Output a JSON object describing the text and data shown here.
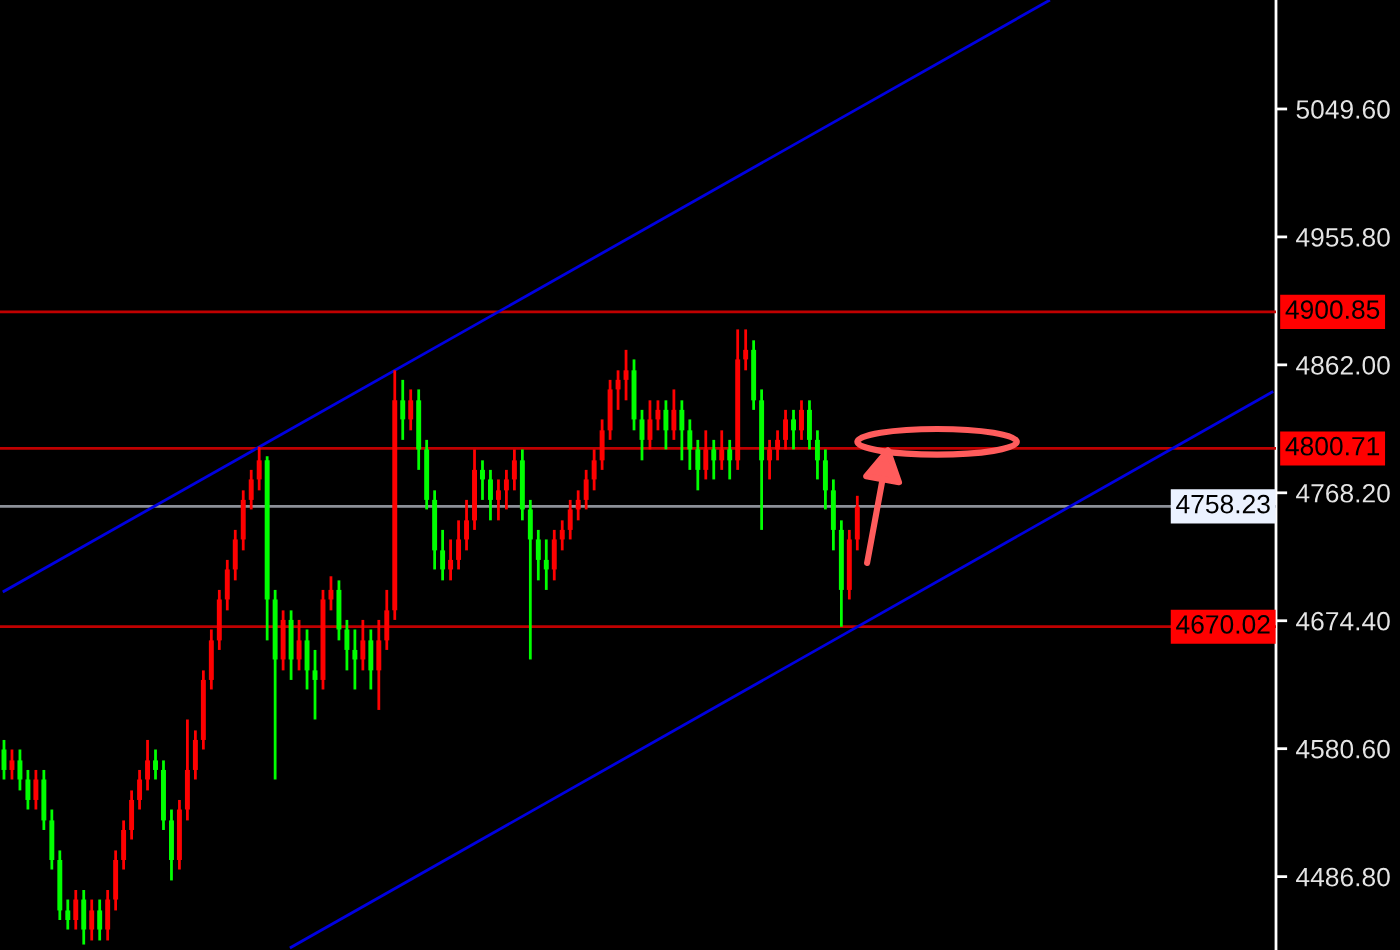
{
  "chart_data": {
    "type": "candlestick",
    "categories": [
      null,
      null,
      null,
      null,
      null,
      null,
      null,
      null,
      null,
      null,
      null,
      null,
      null,
      null,
      null,
      null,
      null,
      null,
      null,
      null,
      null,
      null,
      null,
      null,
      null,
      null,
      null,
      null,
      null,
      null,
      null,
      null,
      null,
      null,
      null,
      null,
      null,
      null,
      null,
      null,
      null,
      null,
      null,
      null,
      null,
      null,
      null,
      null,
      null,
      null,
      null,
      null,
      null,
      null,
      null,
      null,
      null,
      null,
      null,
      null,
      null,
      null,
      null,
      null,
      null,
      null,
      null,
      null,
      null,
      null,
      null,
      null,
      null,
      null,
      null,
      null,
      null,
      null,
      null,
      null,
      null,
      null,
      null,
      null,
      null,
      null,
      null,
      null,
      null,
      null,
      null,
      null,
      null,
      null,
      null,
      null,
      null,
      null,
      null,
      null,
      null,
      null,
      null,
      null,
      null,
      null,
      null,
      null,
      null,
      null,
      null,
      null,
      null,
      null,
      null,
      null,
      null,
      null,
      null,
      null,
      null,
      null,
      null,
      null,
      null,
      null,
      null,
      null,
      null,
      null,
      null,
      null,
      null,
      null,
      null,
      null,
      null,
      null,
      null,
      null,
      null,
      null,
      null,
      null,
      null,
      null,
      null,
      null,
      null,
      null,
      null,
      null,
      null,
      null,
      null,
      null,
      null,
      null,
      null,
      null
    ],
    "ohlc": [
      [
        4580,
        4587,
        4558,
        4565
      ],
      [
        4565,
        4580,
        4558,
        4572
      ],
      [
        4572,
        4580,
        4550,
        4558
      ],
      [
        4558,
        4565,
        4536,
        4543
      ],
      [
        4543,
        4565,
        4536,
        4558
      ],
      [
        4558,
        4565,
        4521,
        4528
      ],
      [
        4528,
        4536,
        4492,
        4499
      ],
      [
        4499,
        4506,
        4455,
        4462
      ],
      [
        4462,
        4470,
        4448,
        4455
      ],
      [
        4455,
        4477,
        4448,
        4470
      ],
      [
        4470,
        4477,
        4437,
        4448
      ],
      [
        4448,
        4470,
        4440,
        4462
      ],
      [
        4462,
        4470,
        4440,
        4448
      ],
      [
        4448,
        4477,
        4440,
        4470
      ],
      [
        4470,
        4506,
        4462,
        4499
      ],
      [
        4499,
        4528,
        4492,
        4521
      ],
      [
        4521,
        4550,
        4514,
        4543
      ],
      [
        4543,
        4565,
        4536,
        4558
      ],
      [
        4558,
        4587,
        4550,
        4572
      ],
      [
        4572,
        4580,
        4558,
        4565
      ],
      [
        4565,
        4572,
        4521,
        4528
      ],
      [
        4528,
        4536,
        4484,
        4499
      ],
      [
        4499,
        4543,
        4492,
        4536
      ],
      [
        4536,
        4602,
        4528,
        4565
      ],
      [
        4565,
        4594,
        4558,
        4587
      ],
      [
        4587,
        4638,
        4580,
        4631
      ],
      [
        4631,
        4668,
        4624,
        4660
      ],
      [
        4660,
        4697,
        4653,
        4690
      ],
      [
        4690,
        4719,
        4682,
        4712
      ],
      [
        4712,
        4741,
        4704,
        4734
      ],
      [
        4734,
        4770,
        4726,
        4763
      ],
      [
        4763,
        4785,
        4756,
        4778
      ],
      [
        4778,
        4802,
        4770,
        4792
      ],
      [
        4792,
        4795,
        4660,
        4690
      ],
      [
        4690,
        4697,
        4558,
        4646
      ],
      [
        4646,
        4682,
        4638,
        4675
      ],
      [
        4675,
        4682,
        4631,
        4646
      ],
      [
        4646,
        4675,
        4638,
        4660
      ],
      [
        4660,
        4668,
        4624,
        4638
      ],
      [
        4638,
        4653,
        4602,
        4631
      ],
      [
        4631,
        4697,
        4624,
        4690
      ],
      [
        4690,
        4707,
        4682,
        4697
      ],
      [
        4697,
        4704,
        4660,
        4668
      ],
      [
        4668,
        4675,
        4638,
        4653
      ],
      [
        4653,
        4668,
        4624,
        4646
      ],
      [
        4646,
        4675,
        4638,
        4660
      ],
      [
        4660,
        4668,
        4624,
        4638
      ],
      [
        4638,
        4675,
        4609,
        4660
      ],
      [
        4660,
        4697,
        4653,
        4682
      ],
      [
        4682,
        4858,
        4675,
        4836
      ],
      [
        4836,
        4851,
        4807,
        4822
      ],
      [
        4822,
        4844,
        4814,
        4836
      ],
      [
        4836,
        4844,
        4785,
        4800
      ],
      [
        4800,
        4807,
        4756,
        4763
      ],
      [
        4763,
        4770,
        4712,
        4726
      ],
      [
        4726,
        4741,
        4704,
        4712
      ],
      [
        4712,
        4734,
        4704,
        4719
      ],
      [
        4719,
        4748,
        4712,
        4734
      ],
      [
        4734,
        4763,
        4726,
        4748
      ],
      [
        4748,
        4800,
        4741,
        4785
      ],
      [
        4785,
        4792,
        4763,
        4778
      ],
      [
        4778,
        4785,
        4748,
        4763
      ],
      [
        4763,
        4778,
        4748,
        4770
      ],
      [
        4770,
        4785,
        4756,
        4778
      ],
      [
        4778,
        4800,
        4770,
        4792
      ],
      [
        4792,
        4800,
        4748,
        4756
      ],
      [
        4756,
        4763,
        4646,
        4734
      ],
      [
        4734,
        4741,
        4704,
        4719
      ],
      [
        4719,
        4734,
        4697,
        4712
      ],
      [
        4712,
        4741,
        4704,
        4734
      ],
      [
        4734,
        4748,
        4726,
        4741
      ],
      [
        4741,
        4763,
        4734,
        4756
      ],
      [
        4756,
        4770,
        4748,
        4763
      ],
      [
        4763,
        4785,
        4756,
        4778
      ],
      [
        4778,
        4800,
        4770,
        4792
      ],
      [
        4792,
        4822,
        4785,
        4814
      ],
      [
        4814,
        4851,
        4807,
        4844
      ],
      [
        4844,
        4858,
        4829,
        4851
      ],
      [
        4851,
        4873,
        4836,
        4858
      ],
      [
        4858,
        4866,
        4814,
        4822
      ],
      [
        4822,
        4829,
        4792,
        4807
      ],
      [
        4807,
        4836,
        4800,
        4822
      ],
      [
        4822,
        4836,
        4814,
        4829
      ],
      [
        4829,
        4836,
        4800,
        4814
      ],
      [
        4814,
        4844,
        4807,
        4829
      ],
      [
        4829,
        4836,
        4792,
        4814
      ],
      [
        4814,
        4822,
        4785,
        4800
      ],
      [
        4800,
        4807,
        4770,
        4785
      ],
      [
        4785,
        4814,
        4778,
        4800
      ],
      [
        4800,
        4807,
        4778,
        4792
      ],
      [
        4792,
        4814,
        4785,
        4800
      ],
      [
        4800,
        4807,
        4778,
        4792
      ],
      [
        4792,
        4888,
        4785,
        4866
      ],
      [
        4866,
        4888,
        4858,
        4873
      ],
      [
        4873,
        4880,
        4829,
        4836
      ],
      [
        4836,
        4844,
        4741,
        4792
      ],
      [
        4792,
        4807,
        4778,
        4800
      ],
      [
        4800,
        4814,
        4792,
        4807
      ],
      [
        4807,
        4829,
        4800,
        4822
      ],
      [
        4822,
        4829,
        4800,
        4814
      ],
      [
        4814,
        4836,
        4807,
        4829
      ],
      [
        4829,
        4836,
        4800,
        4807
      ],
      [
        4807,
        4814,
        4778,
        4792
      ],
      [
        4792,
        4800,
        4756,
        4770
      ],
      [
        4770,
        4778,
        4726,
        4741
      ],
      [
        4741,
        4748,
        4670,
        4697
      ],
      [
        4697,
        4741,
        4690,
        4734
      ],
      [
        4734,
        4766,
        4726,
        4758
      ],
      null,
      null,
      null,
      null,
      null,
      null,
      null,
      null,
      null,
      null,
      null,
      null,
      null,
      null,
      null,
      null,
      null,
      null,
      null,
      null,
      null,
      null,
      null,
      null,
      null,
      null,
      null,
      null,
      null,
      null,
      null,
      null,
      null,
      null,
      null,
      null,
      null,
      null,
      null,
      null,
      null,
      null,
      null,
      null,
      null,
      null,
      null,
      null,
      null,
      null,
      null,
      null
    ],
    "colors": [
      "#00ff00",
      "#ff0000",
      "#00ff00",
      "#00ff00",
      "#ff0000",
      "#00ff00",
      "#00ff00",
      "#00ff00",
      "#00ff00",
      "#ff0000",
      "#00ff00",
      "#ff0000",
      "#00ff00",
      "#ff0000",
      "#ff0000",
      "#ff0000",
      "#ff0000",
      "#ff0000",
      "#ff0000",
      "#00ff00",
      "#00ff00",
      "#00ff00",
      "#ff0000",
      "#ff0000",
      "#ff0000",
      "#ff0000",
      "#ff0000",
      "#ff0000",
      "#ff0000",
      "#ff0000",
      "#ff0000",
      "#ff0000",
      "#ff0000",
      "#00ff00",
      "#00ff00",
      "#ff0000",
      "#00ff00",
      "#ff0000",
      "#00ff00",
      "#00ff00",
      "#ff0000",
      "#ff0000",
      "#00ff00",
      "#00ff00",
      "#00ff00",
      "#ff0000",
      "#00ff00",
      "#ff0000",
      "#ff0000",
      "#ff0000",
      "#00ff00",
      "#ff0000",
      "#00ff00",
      "#00ff00",
      "#00ff00",
      "#00ff00",
      "#ff0000",
      "#ff0000",
      "#ff0000",
      "#ff0000",
      "#00ff00",
      "#00ff00",
      "#ff0000",
      "#ff0000",
      "#ff0000",
      "#00ff00",
      "#00ff00",
      "#00ff00",
      "#00ff00",
      "#ff0000",
      "#ff0000",
      "#ff0000",
      "#ff0000",
      "#ff0000",
      "#ff0000",
      "#ff0000",
      "#ff0000",
      "#ff0000",
      "#ff0000",
      "#00ff00",
      "#00ff00",
      "#ff0000",
      "#ff0000",
      "#00ff00",
      "#ff0000",
      "#00ff00",
      "#00ff00",
      "#00ff00",
      "#ff0000",
      "#00ff00",
      "#ff0000",
      "#00ff00",
      "#ff0000",
      "#ff0000",
      "#00ff00",
      "#00ff00",
      "#ff0000",
      "#ff0000",
      "#ff0000",
      "#00ff00",
      "#ff0000",
      "#00ff00",
      "#00ff00",
      "#00ff00",
      "#00ff00",
      "#00ff00",
      "#ff0000",
      "#ff0000",
      null,
      null,
      null,
      null,
      null,
      null,
      null,
      null,
      null,
      null,
      null,
      null,
      null,
      null,
      null,
      null,
      null,
      null,
      null,
      null,
      null,
      null,
      null,
      null,
      null,
      null,
      null,
      null,
      null,
      null,
      null,
      null,
      null,
      null,
      null,
      null,
      null,
      null,
      null,
      null,
      null,
      null,
      null,
      null,
      null,
      null,
      null,
      null,
      null,
      null,
      null,
      null
    ],
    "series": [
      {
        "type": "line",
        "color": "#0000e0",
        "values": [
          4696,
          null,
          null,
          null,
          null,
          null,
          null,
          null,
          null,
          null,
          null,
          null,
          null,
          null,
          null,
          null,
          null,
          null,
          null,
          null,
          null,
          null,
          null,
          null,
          null,
          null,
          null,
          null,
          null,
          null,
          null,
          null,
          null,
          null,
          null,
          null,
          null,
          null,
          null,
          null,
          null,
          null,
          null,
          null,
          null,
          null,
          null,
          null,
          null,
          null,
          null,
          null,
          null,
          null,
          null,
          null,
          null,
          null,
          null,
          null,
          null,
          null,
          null,
          null,
          null,
          null,
          null,
          null,
          null,
          null,
          null,
          null,
          null,
          null,
          null,
          null,
          null,
          null,
          null,
          null,
          null,
          null,
          null,
          null,
          null,
          null,
          null,
          null,
          null,
          null,
          null,
          null,
          null,
          null,
          null,
          null,
          null,
          null,
          null,
          null,
          null,
          null,
          null,
          null,
          null,
          null,
          null,
          null,
          null,
          null,
          null,
          null,
          null,
          null,
          null,
          null,
          null,
          null,
          null,
          null,
          null,
          null,
          null,
          null,
          null,
          null,
          null,
          null,
          null,
          null,
          null,
          5129,
          null,
          null,
          null,
          null,
          null,
          null,
          null,
          null,
          null,
          null,
          null,
          null,
          null,
          null,
          null,
          null,
          null,
          null,
          null,
          null,
          null,
          null,
          null,
          null,
          null,
          null,
          null,
          null
        ]
      },
      {
        "type": "line",
        "color": "#0000e0",
        "values": [
          null,
          null,
          null,
          null,
          null,
          null,
          null,
          null,
          null,
          null,
          null,
          null,
          null,
          null,
          null,
          null,
          null,
          null,
          null,
          null,
          null,
          null,
          null,
          null,
          null,
          null,
          null,
          null,
          null,
          null,
          null,
          null,
          null,
          null,
          null,
          null,
          4435,
          null,
          null,
          null,
          null,
          null,
          null,
          null,
          null,
          null,
          null,
          null,
          null,
          null,
          null,
          null,
          null,
          null,
          null,
          null,
          null,
          null,
          null,
          null,
          null,
          null,
          null,
          null,
          null,
          null,
          null,
          null,
          null,
          null,
          null,
          null,
          null,
          null,
          null,
          null,
          null,
          null,
          null,
          null,
          null,
          null,
          null,
          null,
          null,
          null,
          null,
          null,
          null,
          null,
          null,
          null,
          null,
          null,
          null,
          null,
          null,
          null,
          null,
          null,
          null,
          null,
          null,
          null,
          null,
          null,
          null,
          null,
          null,
          null,
          null,
          null,
          null,
          null,
          null,
          null,
          null,
          null,
          null,
          null,
          null,
          null,
          null,
          null,
          null,
          null,
          null,
          null,
          null,
          null,
          null,
          null,
          null,
          null,
          null,
          null,
          null,
          null,
          null,
          null,
          null,
          null,
          null,
          null,
          null,
          null,
          null,
          null,
          null,
          null,
          null,
          null,
          null,
          null,
          null,
          null,
          null,
          null,
          null,
          4842
        ]
      }
    ],
    "ylim": [
      4433.0,
      5129.5
    ],
    "yticks": [
      {
        "value": 5049.6,
        "label": "5049.60"
      },
      {
        "value": 4955.8,
        "label": "4955.80"
      },
      {
        "value": 4862.0,
        "label": "4862.00"
      },
      {
        "value": 4768.2,
        "label": "4768.20"
      },
      {
        "value": 4674.4,
        "label": "4674.40"
      },
      {
        "value": 4580.6,
        "label": "4580.60"
      },
      {
        "value": 4486.8,
        "label": "4486.80"
      }
    ],
    "tick_labels": "y",
    "ref_lines": [
      {
        "axis": "y",
        "value": 4900.85,
        "label": "4900.85",
        "color": "#c00000"
      },
      {
        "axis": "y",
        "value": 4800.71,
        "label": "4800.71",
        "color": "#c00000"
      },
      {
        "axis": "y",
        "value": 4758.23,
        "label": "4758.23",
        "color": "#8c9098"
      },
      {
        "axis": "y",
        "value": 4670.02,
        "label": "4670.02",
        "color": "#c00000"
      }
    ]
  }
}
